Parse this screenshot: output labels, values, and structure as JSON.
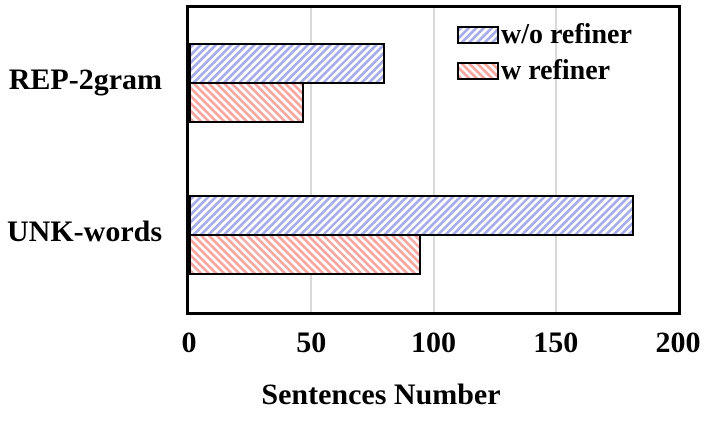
{
  "chart_data": {
    "type": "bar",
    "orientation": "horizontal",
    "xlabel": "Sentences Number",
    "categories": [
      "REP-2gram",
      "UNK-words"
    ],
    "series": [
      {
        "name": "w/o refiner",
        "values": [
          80,
          182
        ],
        "color": "#a8aeea",
        "hatch": "/"
      },
      {
        "name": "w refiner",
        "values": [
          47,
          95
        ],
        "color": "#f8a8a2",
        "hatch": "\\"
      }
    ],
    "xlim": [
      0,
      200
    ],
    "xticks": [
      0,
      50,
      100,
      150,
      200
    ],
    "grid": "vertical-gridlines-at-ticks",
    "legend_position": "top-right-inside",
    "colors": {
      "grid": "#d9d9d9",
      "frame": "#000000",
      "text": "#000000",
      "background": "#ffffff"
    }
  }
}
